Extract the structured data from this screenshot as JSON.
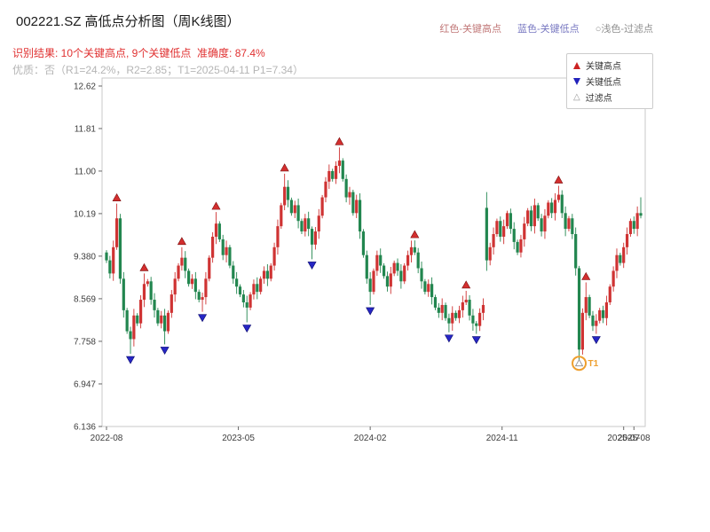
{
  "header": {
    "title": "002221.SZ 高低点分析图（周K线图）",
    "legend_top": {
      "high_label": "红色-关键高点",
      "low_label": "蓝色-关键低点",
      "filter_label": "○浅色-过滤点",
      "high_color": "#c17878",
      "low_color": "#7878c1",
      "filter_color": "#8f8f8f"
    },
    "result_line": "识别结果: 10个关键高点, 9个关键低点  准确度: 87.4%",
    "result_color": "#e03131",
    "quality_line": "优质：否（R1=24.2%，R2=2.85；T1=2025-04-11 P1=7.34）",
    "quality_color": "#b5b5b5"
  },
  "chart_legend": {
    "items": [
      {
        "label": "关键高点",
        "marker": "triangle-up-filled",
        "color": "#cc2222"
      },
      {
        "label": "关键低点",
        "marker": "triangle-down-filled",
        "color": "#2222bb"
      },
      {
        "label": "过滤点",
        "marker": "triangle-up-hollow",
        "color": "#999999",
        "glyph": "△"
      }
    ]
  },
  "chart_data": {
    "type": "candlestick",
    "title": "002221.SZ 高低点分析图（周K线图）",
    "frequency": "weekly",
    "ylim": [
      6.136,
      12.62
    ],
    "y_ticks": [
      12.62,
      11.81,
      11.0,
      10.19,
      9.38,
      8.569,
      7.758,
      6.947,
      6.136
    ],
    "y_tick_labels": [
      "12.62",
      "11.81",
      "11.00",
      "10.19",
      "9.380",
      "8.569",
      "7.758",
      "6.947",
      "6.136"
    ],
    "x_ticks": [
      {
        "label": "2022-08",
        "week": 0
      },
      {
        "label": "2023-05",
        "week": 38.5
      },
      {
        "label": "2024-02",
        "week": 77
      },
      {
        "label": "2024-11",
        "week": 115.5
      },
      {
        "label": "2025-07",
        "week": 151
      },
      {
        "label": "2025-08",
        "week": 154
      }
    ],
    "up_color": "#cf3333",
    "down_color": "#22864f",
    "key_high_color": "#d32f2f",
    "key_high_edge": "#7a0c0c",
    "key_low_color": "#2626c4",
    "key_low_edge": "#0c0c6e",
    "candles": {
      "first_open": 9.45,
      "closes": [
        9.3,
        9.05,
        9.55,
        10.1,
        8.95,
        8.35,
        7.95,
        7.8,
        8.25,
        8.1,
        8.55,
        8.85,
        8.9,
        8.55,
        8.35,
        8.1,
        8.25,
        7.95,
        8.3,
        8.65,
        8.95,
        9.2,
        9.35,
        9.1,
        8.85,
        8.95,
        8.7,
        8.55,
        8.6,
        8.95,
        9.35,
        9.75,
        10.0,
        9.7,
        9.4,
        9.55,
        9.2,
        8.95,
        8.8,
        8.65,
        8.5,
        8.4,
        8.65,
        8.85,
        8.7,
        8.95,
        9.1,
        8.95,
        9.2,
        9.55,
        9.95,
        10.35,
        10.7,
        10.45,
        10.2,
        10.35,
        10.05,
        9.85,
        10.1,
        9.9,
        9.6,
        9.85,
        10.15,
        10.5,
        10.8,
        11.0,
        10.85,
        11.1,
        11.2,
        10.85,
        10.5,
        10.6,
        10.2,
        10.45,
        9.85,
        9.4,
        8.95,
        8.7,
        9.1,
        9.4,
        9.2,
        9.0,
        8.8,
        9.05,
        9.25,
        9.1,
        8.9,
        9.2,
        9.4,
        9.55,
        9.45,
        9.15,
        8.9,
        8.7,
        8.85,
        8.6,
        8.4,
        8.3,
        8.45,
        8.2,
        8.1,
        8.3,
        8.2,
        8.35,
        8.5,
        8.55,
        8.25,
        8.1,
        8.05,
        8.3,
        8.45,
        9.3,
        9.55,
        9.8,
        10.05,
        9.75,
        9.95,
        10.2,
        9.9,
        9.65,
        9.45,
        9.7,
        10.0,
        10.25,
        9.95,
        10.35,
        10.1,
        9.85,
        10.15,
        10.4,
        10.2,
        10.45,
        10.55,
        10.2,
        9.9,
        10.1,
        9.8,
        9.15,
        7.6,
        8.3,
        8.6,
        8.25,
        8.05,
        8.15,
        8.35,
        8.2,
        8.5,
        8.8,
        9.1,
        9.4,
        9.25,
        9.55,
        9.8,
        10.05,
        9.9,
        10.2,
        10.15
      ],
      "open_overrides": {
        "111": 10.3
      },
      "extra_highs": {
        "71": 10.7,
        "73": 10.55,
        "111": 10.6,
        "156": 10.5
      },
      "extra_lows": {
        "111": 9.1,
        "138": 7.34
      }
    },
    "key_highs": [
      {
        "week": 3,
        "price": 10.38
      },
      {
        "week": 11,
        "price": 9.05
      },
      {
        "week": 22,
        "price": 9.55
      },
      {
        "week": 32,
        "price": 10.22
      },
      {
        "week": 52,
        "price": 10.95
      },
      {
        "week": 68,
        "price": 11.45
      },
      {
        "week": 90,
        "price": 9.68
      },
      {
        "week": 105,
        "price": 8.72
      },
      {
        "week": 132,
        "price": 10.72
      },
      {
        "week": 140,
        "price": 8.88
      }
    ],
    "key_lows": [
      {
        "week": 7,
        "price": 7.52
      },
      {
        "week": 17,
        "price": 7.7
      },
      {
        "week": 28,
        "price": 8.32
      },
      {
        "week": 41,
        "price": 8.12
      },
      {
        "week": 60,
        "price": 9.32
      },
      {
        "week": 77,
        "price": 8.45
      },
      {
        "week": 100,
        "price": 7.93
      },
      {
        "week": 108,
        "price": 7.9
      },
      {
        "week": 143,
        "price": 7.9
      }
    ],
    "filtered_point": {
      "week": 138,
      "price": 7.34,
      "label": "T1",
      "circle_color": "#ee9f2e"
    },
    "stats": {
      "key_high_count": 10,
      "key_low_count": 9,
      "accuracy_pct": 87.4,
      "R1": "24.2%",
      "R2": "2.85",
      "T1_date": "2025-04-11",
      "P1": 7.34
    }
  }
}
